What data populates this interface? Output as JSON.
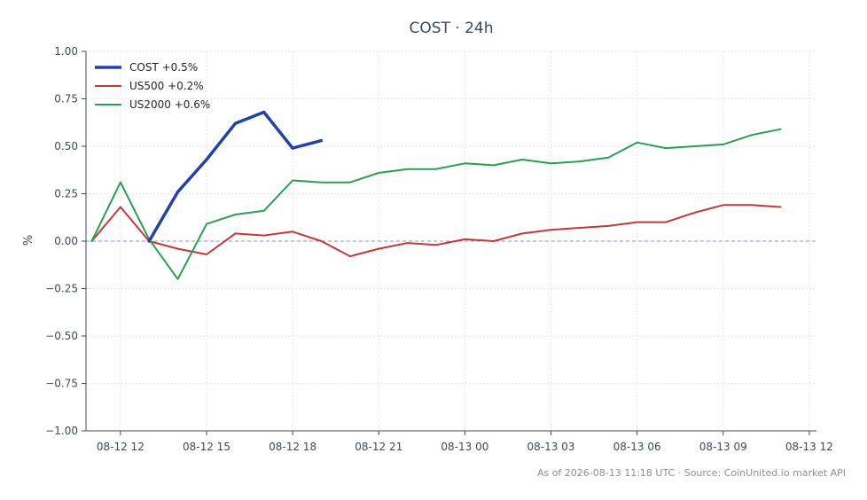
{
  "chart_data": {
    "type": "line",
    "title": "COST · 24h",
    "ylabel": "%",
    "ylim": [
      -1.0,
      1.0
    ],
    "yticks": [
      "1.00",
      "0.75",
      "0.50",
      "0.25",
      "0.00",
      "−0.25",
      "−0.50",
      "−0.75",
      "−1.00"
    ],
    "ytick_values": [
      1.0,
      0.75,
      0.5,
      0.25,
      0.0,
      -0.25,
      -0.5,
      -0.75,
      -1.0
    ],
    "xlim": [
      "2026-08-12 10:48",
      "2026-08-13 12:15"
    ],
    "xticks": [
      "08-12 12",
      "08-12 15",
      "08-12 18",
      "08-12 21",
      "08-13 00",
      "08-13 03",
      "08-13 06",
      "08-13 09",
      "08-13 12"
    ],
    "xtick_times": [
      "2026-08-12 12:00",
      "2026-08-12 15:00",
      "2026-08-12 18:00",
      "2026-08-12 21:00",
      "2026-08-13 00:00",
      "2026-08-13 03:00",
      "2026-08-13 06:00",
      "2026-08-13 09:00",
      "2026-08-13 12:00"
    ],
    "grid": true,
    "zero_line": true,
    "legend_position": "top-left",
    "series": [
      {
        "name": "COST +0.5%",
        "color": "#2343a0",
        "x": [
          "2026-08-12 13:00",
          "2026-08-12 14:00",
          "2026-08-12 15:00",
          "2026-08-12 16:00",
          "2026-08-12 17:00",
          "2026-08-12 18:00",
          "2026-08-12 19:00"
        ],
        "values": [
          0.0,
          0.26,
          0.43,
          0.62,
          0.68,
          0.49,
          0.53
        ]
      },
      {
        "name": "US500 +0.2%",
        "color": "#c0393b",
        "x": [
          "2026-08-12 11:00",
          "2026-08-12 12:00",
          "2026-08-12 13:00",
          "2026-08-12 14:00",
          "2026-08-12 15:00",
          "2026-08-12 16:00",
          "2026-08-12 17:00",
          "2026-08-12 18:00",
          "2026-08-12 19:00",
          "2026-08-12 20:00",
          "2026-08-12 21:00",
          "2026-08-12 22:00",
          "2026-08-12 23:00",
          "2026-08-13 00:00",
          "2026-08-13 01:00",
          "2026-08-13 02:00",
          "2026-08-13 03:00",
          "2026-08-13 04:00",
          "2026-08-13 05:00",
          "2026-08-13 06:00",
          "2026-08-13 07:00",
          "2026-08-13 08:00",
          "2026-08-13 09:00",
          "2026-08-13 10:00",
          "2026-08-13 11:00"
        ],
        "values": [
          0.0,
          0.18,
          0.0,
          -0.04,
          -0.07,
          0.04,
          0.03,
          0.05,
          0.0,
          -0.08,
          -0.04,
          -0.01,
          -0.02,
          0.01,
          0.0,
          0.04,
          0.06,
          0.07,
          0.08,
          0.1,
          0.1,
          0.15,
          0.19,
          0.19,
          0.18
        ]
      },
      {
        "name": "US2000 +0.6%",
        "color": "#2a9d55",
        "x": [
          "2026-08-12 11:00",
          "2026-08-12 12:00",
          "2026-08-12 13:00",
          "2026-08-12 14:00",
          "2026-08-12 15:00",
          "2026-08-12 16:00",
          "2026-08-12 17:00",
          "2026-08-12 18:00",
          "2026-08-12 19:00",
          "2026-08-12 20:00",
          "2026-08-12 21:00",
          "2026-08-12 22:00",
          "2026-08-12 23:00",
          "2026-08-13 00:00",
          "2026-08-13 01:00",
          "2026-08-13 02:00",
          "2026-08-13 03:00",
          "2026-08-13 04:00",
          "2026-08-13 05:00",
          "2026-08-13 06:00",
          "2026-08-13 07:00",
          "2026-08-13 08:00",
          "2026-08-13 09:00",
          "2026-08-13 10:00",
          "2026-08-13 11:00"
        ],
        "values": [
          0.0,
          0.31,
          0.01,
          -0.2,
          0.09,
          0.14,
          0.16,
          0.32,
          0.31,
          0.31,
          0.36,
          0.38,
          0.38,
          0.41,
          0.4,
          0.43,
          0.41,
          0.42,
          0.44,
          0.52,
          0.49,
          0.5,
          0.51,
          0.56,
          0.59
        ]
      }
    ]
  },
  "footer": "As of 2026-08-13 11:18 UTC · Source: CoinUnited.io market API"
}
